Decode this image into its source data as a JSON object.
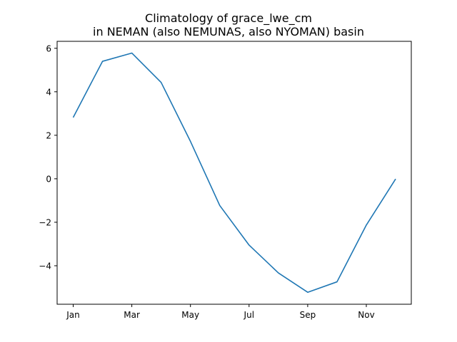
{
  "chart_data": {
    "type": "line",
    "title_line1": "Climatology of grace_lwe_cm",
    "title_line2": "in NEMAN (also NEMUNAS, also NYOMAN) basin",
    "xlabel": "",
    "ylabel": "",
    "x": [
      "Jan",
      "Feb",
      "Mar",
      "Apr",
      "May",
      "Jun",
      "Jul",
      "Aug",
      "Sep",
      "Oct",
      "Nov",
      "Dec"
    ],
    "x_tick_labels": [
      "Jan",
      "Mar",
      "May",
      "Jul",
      "Sep",
      "Nov"
    ],
    "series": [
      {
        "values": [
          2.82,
          5.4,
          5.78,
          4.43,
          1.72,
          -1.23,
          -3.05,
          -4.33,
          -5.22,
          -4.74,
          -2.13,
          -0.01
        ],
        "color": "#1f77b4"
      }
    ],
    "y_ticks": [
      6,
      4,
      2,
      0,
      -2,
      -4
    ],
    "y_tick_labels": [
      "6",
      "4",
      "2",
      "0",
      "−2",
      "−4"
    ],
    "ylim": [
      -5.77,
      6.32
    ],
    "grid": false,
    "legend": "none"
  }
}
